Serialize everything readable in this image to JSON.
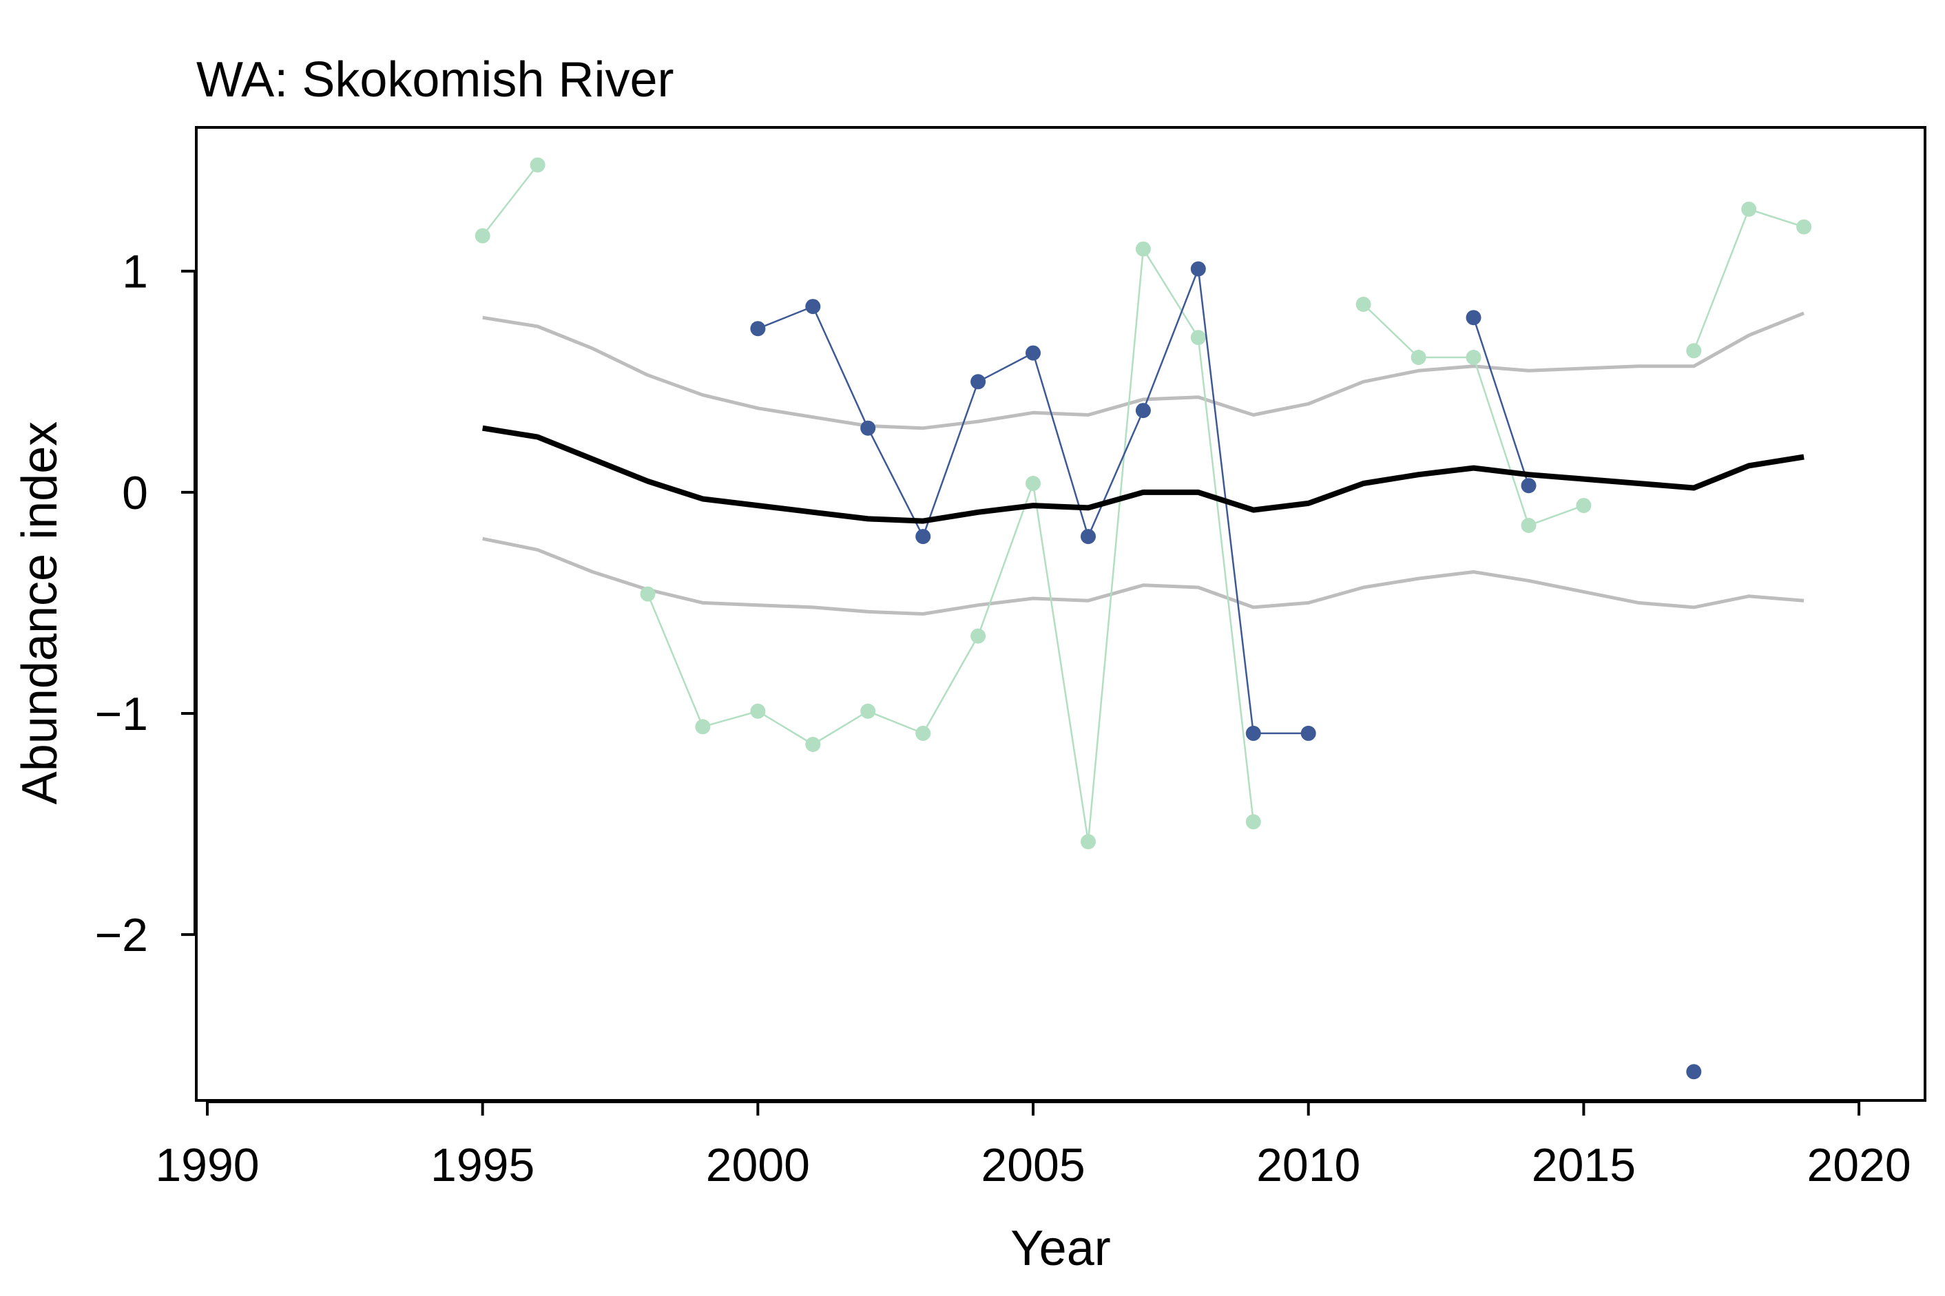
{
  "chart_data": {
    "type": "line",
    "title": "WA: Skokomish River",
    "xlabel": "Year",
    "ylabel": "Abundance index",
    "xlim": [
      1989.8,
      2021.2
    ],
    "ylim": [
      -2.75,
      1.65
    ],
    "xticks": [
      1990,
      1995,
      2000,
      2005,
      2010,
      2015,
      2020
    ],
    "xtick_labels": [
      "1990",
      "1995",
      "2000",
      "2005",
      "2010",
      "2015",
      "2020"
    ],
    "yticks": [
      1,
      0,
      -1,
      -2
    ],
    "ytick_labels": [
      "1",
      "0",
      "−1",
      "−2"
    ],
    "grid": false,
    "legend": "none",
    "series": [
      {
        "role": "upper_band",
        "color": "#bdbdbd",
        "markers": false,
        "x": [
          1995,
          1996,
          1997,
          1998,
          1999,
          2000,
          2001,
          2002,
          2003,
          2004,
          2005,
          2006,
          2007,
          2008,
          2009,
          2010,
          2011,
          2012,
          2013,
          2014,
          2015,
          2016,
          2017,
          2018,
          2019
        ],
        "y": [
          0.79,
          0.75,
          0.65,
          0.53,
          0.44,
          0.38,
          0.34,
          0.3,
          0.29,
          0.32,
          0.36,
          0.35,
          0.42,
          0.43,
          0.35,
          0.4,
          0.5,
          0.55,
          0.57,
          0.55,
          0.56,
          0.57,
          0.57,
          0.71,
          0.81
        ]
      },
      {
        "role": "lower_band",
        "color": "#bdbdbd",
        "markers": false,
        "x": [
          1995,
          1996,
          1997,
          1998,
          1999,
          2000,
          2001,
          2002,
          2003,
          2004,
          2005,
          2006,
          2007,
          2008,
          2009,
          2010,
          2011,
          2012,
          2013,
          2014,
          2015,
          2016,
          2017,
          2018,
          2019
        ],
        "y": [
          -0.21,
          -0.26,
          -0.36,
          -0.44,
          -0.5,
          -0.51,
          -0.52,
          -0.54,
          -0.55,
          -0.51,
          -0.48,
          -0.49,
          -0.42,
          -0.43,
          -0.52,
          -0.5,
          -0.43,
          -0.39,
          -0.36,
          -0.4,
          -0.45,
          -0.5,
          -0.52,
          -0.47,
          -0.49
        ]
      },
      {
        "role": "trend",
        "color": "#000000",
        "markers": false,
        "x": [
          1995,
          1996,
          1997,
          1998,
          1999,
          2000,
          2001,
          2002,
          2003,
          2004,
          2005,
          2006,
          2007,
          2008,
          2009,
          2010,
          2011,
          2012,
          2013,
          2014,
          2015,
          2016,
          2017,
          2018,
          2019
        ],
        "y": [
          0.29,
          0.25,
          0.15,
          0.05,
          -0.03,
          -0.06,
          -0.09,
          -0.12,
          -0.13,
          -0.09,
          -0.06,
          -0.07,
          0.0,
          0.0,
          -0.08,
          -0.05,
          0.04,
          0.08,
          0.11,
          0.08,
          0.06,
          0.04,
          0.02,
          0.12,
          0.16
        ]
      },
      {
        "role": "observations_light",
        "color": "#b2dfc2",
        "markers": true,
        "segments": [
          {
            "x": [
              1995,
              1996
            ],
            "y": [
              1.16,
              1.48
            ]
          },
          {
            "x": [
              1998,
              1999,
              2000,
              2001,
              2002,
              2003,
              2004,
              2005,
              2006,
              2007,
              2008,
              2009
            ],
            "y": [
              -0.46,
              -1.06,
              -0.99,
              -1.14,
              -0.99,
              -1.09,
              -0.65,
              0.04,
              -1.58,
              1.1,
              0.7,
              -1.49
            ]
          },
          {
            "x": [
              2011,
              2012,
              2013,
              2014,
              2015
            ],
            "y": [
              0.85,
              0.61,
              0.61,
              -0.15,
              -0.06
            ]
          },
          {
            "x": [
              2017,
              2018,
              2019
            ],
            "y": [
              0.64,
              1.28,
              1.2
            ]
          }
        ]
      },
      {
        "role": "observations_dark",
        "color": "#3d5a96",
        "markers": true,
        "segments": [
          {
            "x": [
              2000,
              2001,
              2002,
              2003,
              2004,
              2005,
              2006,
              2007,
              2008,
              2009,
              2010
            ],
            "y": [
              0.74,
              0.84,
              0.29,
              -0.2,
              0.5,
              0.63,
              -0.2,
              0.37,
              1.01,
              -1.09,
              -1.09
            ]
          },
          {
            "x": [
              2013,
              2014
            ],
            "y": [
              0.79,
              0.03
            ]
          },
          {
            "x": [
              2017
            ],
            "y": [
              -2.62
            ]
          }
        ]
      }
    ]
  }
}
